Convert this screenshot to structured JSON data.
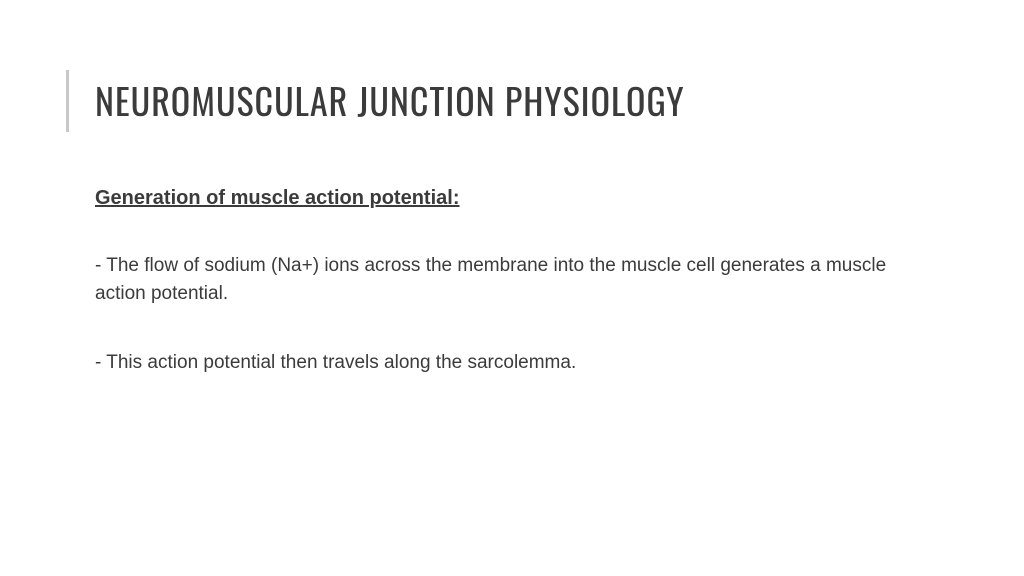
{
  "slide": {
    "title": "NEUROMUSCULAR JUNCTION PHYSIOLOGY",
    "subheading": "Generation of muscle action potential:",
    "bullet1": "- The flow of sodium (Na+) ions across the membrane into the muscle cell generates a muscle action potential.",
    "bullet2": "- This action potential then travels along the sarcolemma."
  },
  "styles": {
    "background_color": "#ffffff",
    "text_color": "#3b3b3b",
    "accent_bar_color": "#c8c8c8",
    "title_fontsize": 36,
    "subheading_fontsize": 20,
    "body_fontsize": 19
  }
}
